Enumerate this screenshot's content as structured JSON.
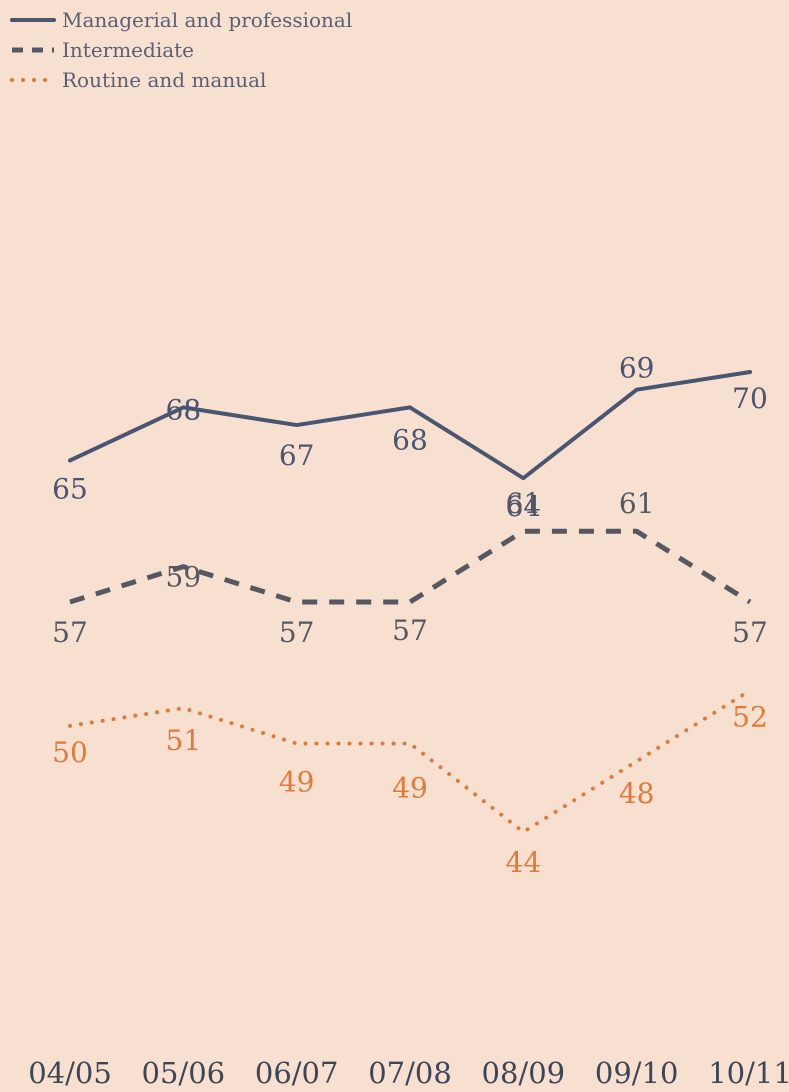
{
  "chart_data": {
    "type": "line",
    "categories": [
      "04/05",
      "05/06",
      "06/07",
      "07/08",
      "08/09",
      "09/10",
      "10/11"
    ],
    "series": [
      {
        "name": "Managerial and professional",
        "values": [
          65,
          68,
          67,
          68,
          64,
          69,
          70
        ],
        "color": "#4a5572",
        "line_style": "solid"
      },
      {
        "name": "Intermediate",
        "values": [
          57,
          59,
          57,
          57,
          61,
          61,
          57
        ],
        "color": "#555862",
        "line_style": "dashed"
      },
      {
        "name": "Routine and manual",
        "values": [
          50,
          51,
          49,
          49,
          44,
          48,
          52
        ],
        "color": "#e07a3a",
        "line_style": "dotted"
      }
    ],
    "title": "",
    "xlabel": "",
    "ylabel": "",
    "grid": false,
    "legend": "top-left",
    "data_labels": true
  }
}
